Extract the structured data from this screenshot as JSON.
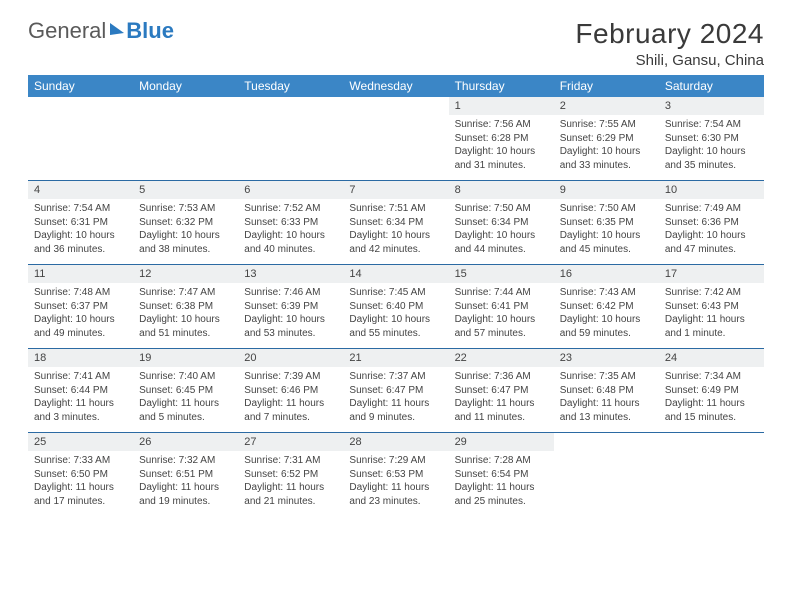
{
  "logo": {
    "text1": "General",
    "text2": "Blue"
  },
  "title": "February 2024",
  "location": "Shili, Gansu, China",
  "colors": {
    "header_bg": "#3b86c6",
    "header_text": "#ffffff",
    "daynum_bg": "#eef0f1",
    "body_text": "#444444",
    "rule": "#2b6aa3",
    "logo_gray": "#5a5a5a",
    "logo_blue": "#2b7ac0"
  },
  "day_names": [
    "Sunday",
    "Monday",
    "Tuesday",
    "Wednesday",
    "Thursday",
    "Friday",
    "Saturday"
  ],
  "weeks": [
    [
      null,
      null,
      null,
      null,
      {
        "n": "1",
        "sr": "Sunrise: 7:56 AM",
        "ss": "Sunset: 6:28 PM",
        "d1": "Daylight: 10 hours",
        "d2": "and 31 minutes."
      },
      {
        "n": "2",
        "sr": "Sunrise: 7:55 AM",
        "ss": "Sunset: 6:29 PM",
        "d1": "Daylight: 10 hours",
        "d2": "and 33 minutes."
      },
      {
        "n": "3",
        "sr": "Sunrise: 7:54 AM",
        "ss": "Sunset: 6:30 PM",
        "d1": "Daylight: 10 hours",
        "d2": "and 35 minutes."
      }
    ],
    [
      {
        "n": "4",
        "sr": "Sunrise: 7:54 AM",
        "ss": "Sunset: 6:31 PM",
        "d1": "Daylight: 10 hours",
        "d2": "and 36 minutes."
      },
      {
        "n": "5",
        "sr": "Sunrise: 7:53 AM",
        "ss": "Sunset: 6:32 PM",
        "d1": "Daylight: 10 hours",
        "d2": "and 38 minutes."
      },
      {
        "n": "6",
        "sr": "Sunrise: 7:52 AM",
        "ss": "Sunset: 6:33 PM",
        "d1": "Daylight: 10 hours",
        "d2": "and 40 minutes."
      },
      {
        "n": "7",
        "sr": "Sunrise: 7:51 AM",
        "ss": "Sunset: 6:34 PM",
        "d1": "Daylight: 10 hours",
        "d2": "and 42 minutes."
      },
      {
        "n": "8",
        "sr": "Sunrise: 7:50 AM",
        "ss": "Sunset: 6:34 PM",
        "d1": "Daylight: 10 hours",
        "d2": "and 44 minutes."
      },
      {
        "n": "9",
        "sr": "Sunrise: 7:50 AM",
        "ss": "Sunset: 6:35 PM",
        "d1": "Daylight: 10 hours",
        "d2": "and 45 minutes."
      },
      {
        "n": "10",
        "sr": "Sunrise: 7:49 AM",
        "ss": "Sunset: 6:36 PM",
        "d1": "Daylight: 10 hours",
        "d2": "and 47 minutes."
      }
    ],
    [
      {
        "n": "11",
        "sr": "Sunrise: 7:48 AM",
        "ss": "Sunset: 6:37 PM",
        "d1": "Daylight: 10 hours",
        "d2": "and 49 minutes."
      },
      {
        "n": "12",
        "sr": "Sunrise: 7:47 AM",
        "ss": "Sunset: 6:38 PM",
        "d1": "Daylight: 10 hours",
        "d2": "and 51 minutes."
      },
      {
        "n": "13",
        "sr": "Sunrise: 7:46 AM",
        "ss": "Sunset: 6:39 PM",
        "d1": "Daylight: 10 hours",
        "d2": "and 53 minutes."
      },
      {
        "n": "14",
        "sr": "Sunrise: 7:45 AM",
        "ss": "Sunset: 6:40 PM",
        "d1": "Daylight: 10 hours",
        "d2": "and 55 minutes."
      },
      {
        "n": "15",
        "sr": "Sunrise: 7:44 AM",
        "ss": "Sunset: 6:41 PM",
        "d1": "Daylight: 10 hours",
        "d2": "and 57 minutes."
      },
      {
        "n": "16",
        "sr": "Sunrise: 7:43 AM",
        "ss": "Sunset: 6:42 PM",
        "d1": "Daylight: 10 hours",
        "d2": "and 59 minutes."
      },
      {
        "n": "17",
        "sr": "Sunrise: 7:42 AM",
        "ss": "Sunset: 6:43 PM",
        "d1": "Daylight: 11 hours",
        "d2": "and 1 minute."
      }
    ],
    [
      {
        "n": "18",
        "sr": "Sunrise: 7:41 AM",
        "ss": "Sunset: 6:44 PM",
        "d1": "Daylight: 11 hours",
        "d2": "and 3 minutes."
      },
      {
        "n": "19",
        "sr": "Sunrise: 7:40 AM",
        "ss": "Sunset: 6:45 PM",
        "d1": "Daylight: 11 hours",
        "d2": "and 5 minutes."
      },
      {
        "n": "20",
        "sr": "Sunrise: 7:39 AM",
        "ss": "Sunset: 6:46 PM",
        "d1": "Daylight: 11 hours",
        "d2": "and 7 minutes."
      },
      {
        "n": "21",
        "sr": "Sunrise: 7:37 AM",
        "ss": "Sunset: 6:47 PM",
        "d1": "Daylight: 11 hours",
        "d2": "and 9 minutes."
      },
      {
        "n": "22",
        "sr": "Sunrise: 7:36 AM",
        "ss": "Sunset: 6:47 PM",
        "d1": "Daylight: 11 hours",
        "d2": "and 11 minutes."
      },
      {
        "n": "23",
        "sr": "Sunrise: 7:35 AM",
        "ss": "Sunset: 6:48 PM",
        "d1": "Daylight: 11 hours",
        "d2": "and 13 minutes."
      },
      {
        "n": "24",
        "sr": "Sunrise: 7:34 AM",
        "ss": "Sunset: 6:49 PM",
        "d1": "Daylight: 11 hours",
        "d2": "and 15 minutes."
      }
    ],
    [
      {
        "n": "25",
        "sr": "Sunrise: 7:33 AM",
        "ss": "Sunset: 6:50 PM",
        "d1": "Daylight: 11 hours",
        "d2": "and 17 minutes."
      },
      {
        "n": "26",
        "sr": "Sunrise: 7:32 AM",
        "ss": "Sunset: 6:51 PM",
        "d1": "Daylight: 11 hours",
        "d2": "and 19 minutes."
      },
      {
        "n": "27",
        "sr": "Sunrise: 7:31 AM",
        "ss": "Sunset: 6:52 PM",
        "d1": "Daylight: 11 hours",
        "d2": "and 21 minutes."
      },
      {
        "n": "28",
        "sr": "Sunrise: 7:29 AM",
        "ss": "Sunset: 6:53 PM",
        "d1": "Daylight: 11 hours",
        "d2": "and 23 minutes."
      },
      {
        "n": "29",
        "sr": "Sunrise: 7:28 AM",
        "ss": "Sunset: 6:54 PM",
        "d1": "Daylight: 11 hours",
        "d2": "and 25 minutes."
      },
      null,
      null
    ]
  ]
}
